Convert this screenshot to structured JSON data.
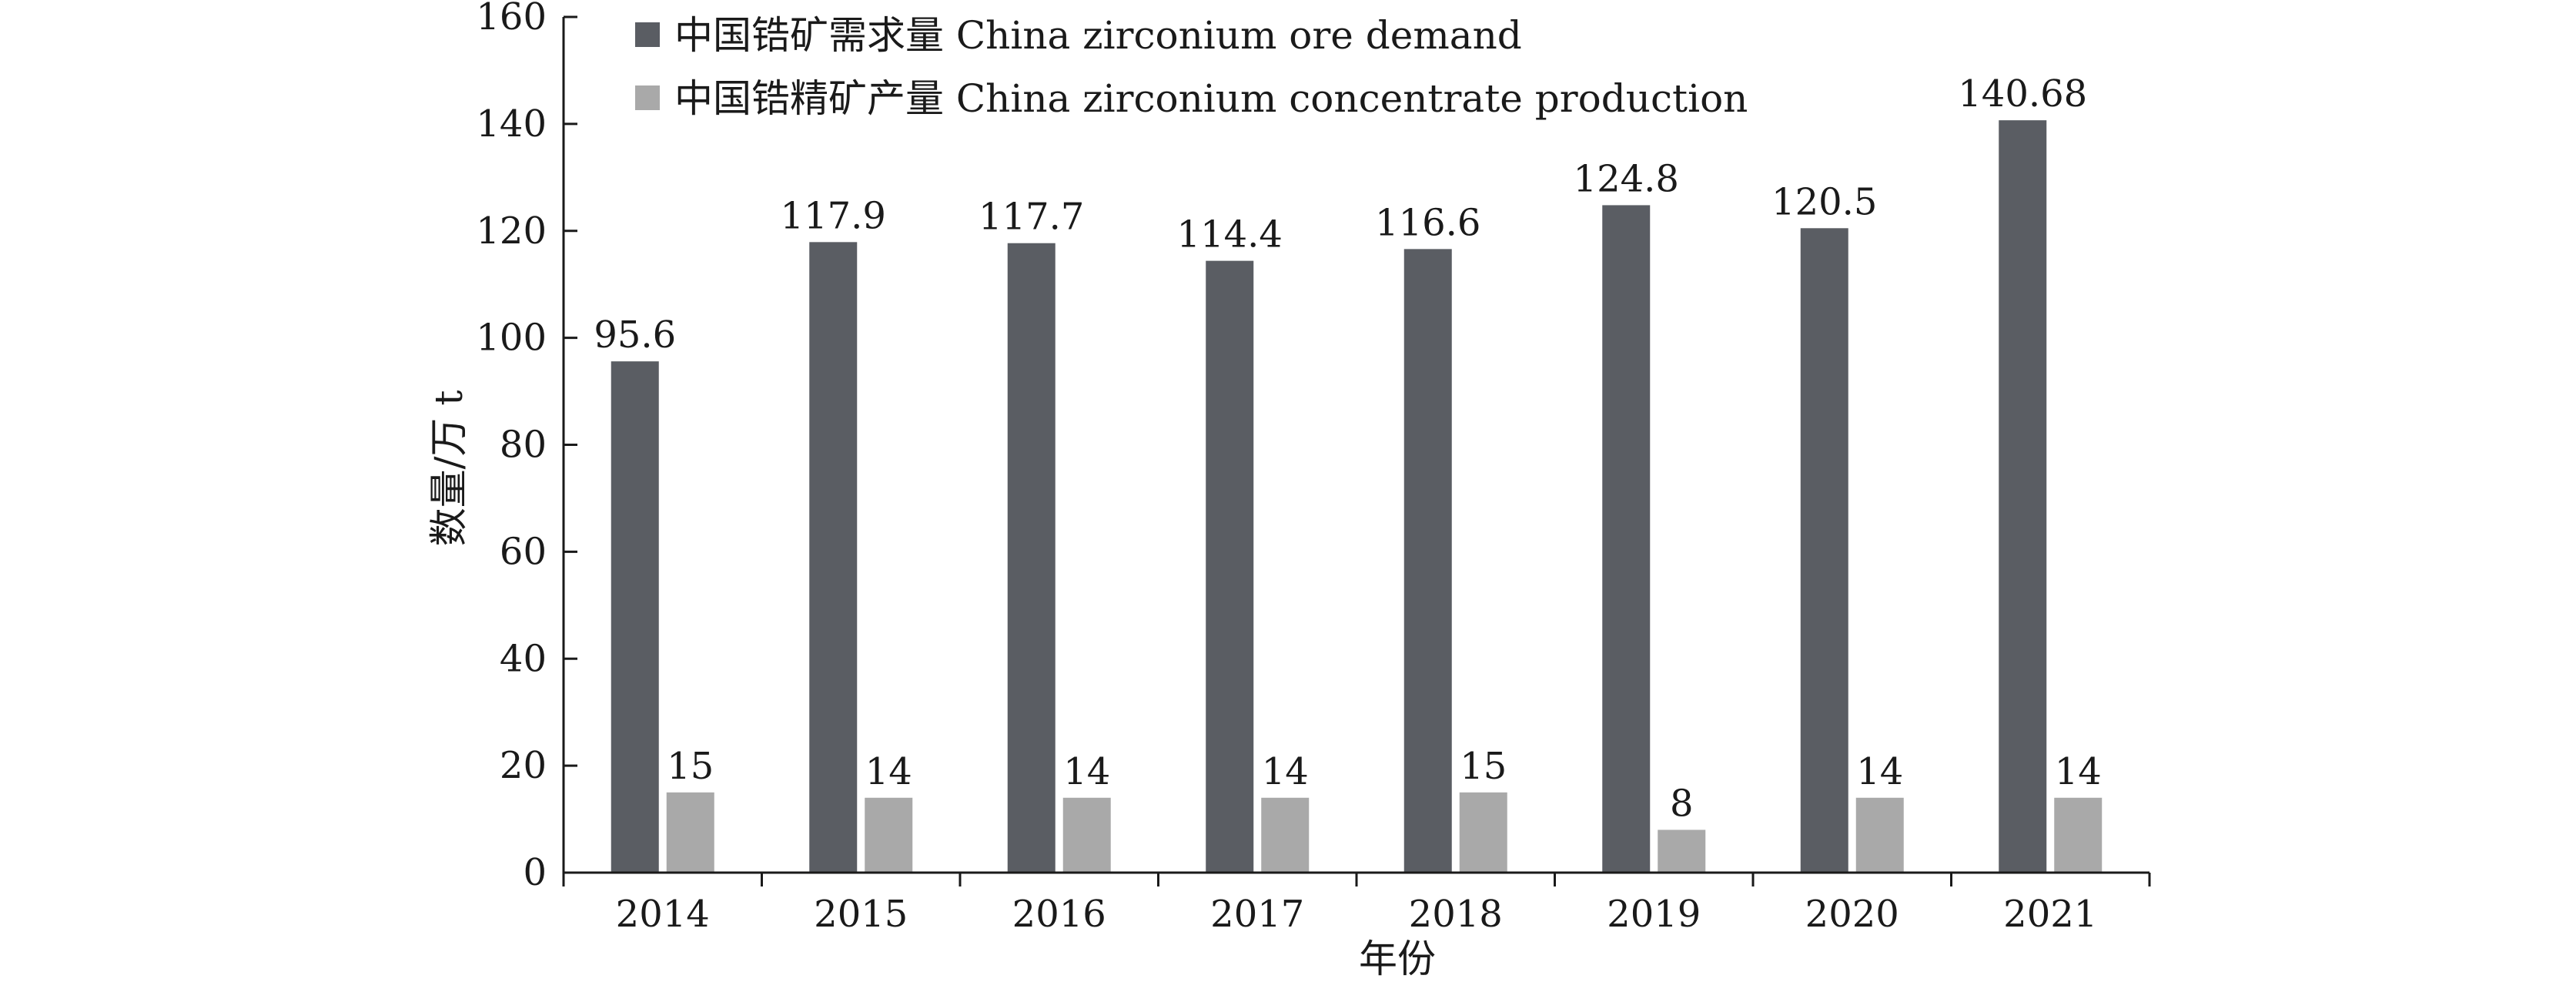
{
  "chart_data": {
    "type": "bar",
    "categories": [
      "2014",
      "2015",
      "2016",
      "2017",
      "2018",
      "2019",
      "2020",
      "2021"
    ],
    "series": [
      {
        "name": "中国锆矿需求量 China zirconium ore demand",
        "values": [
          95.6,
          117.9,
          117.7,
          114.4,
          116.6,
          124.8,
          120.5,
          140.68
        ],
        "labels": [
          "95.6",
          "117.9",
          "117.7",
          "114.4",
          "116.6",
          "124.8",
          "120.5",
          "140.68"
        ],
        "color": "#5a5d63"
      },
      {
        "name": "中国锆精矿产量 China zirconium concentrate production",
        "values": [
          15,
          14,
          14,
          14,
          15,
          8,
          14,
          14
        ],
        "labels": [
          "15",
          "14",
          "14",
          "14",
          "15",
          "8",
          "14",
          "14"
        ],
        "color": "#a9a9a9"
      }
    ],
    "title": "",
    "xlabel": "年份",
    "ylabel": "数量/万 t",
    "ylim": [
      0,
      160
    ],
    "yticks": [
      "0",
      "20",
      "40",
      "60",
      "80",
      "100",
      "120",
      "140",
      "160"
    ],
    "grid": false,
    "legend": "top-left"
  }
}
